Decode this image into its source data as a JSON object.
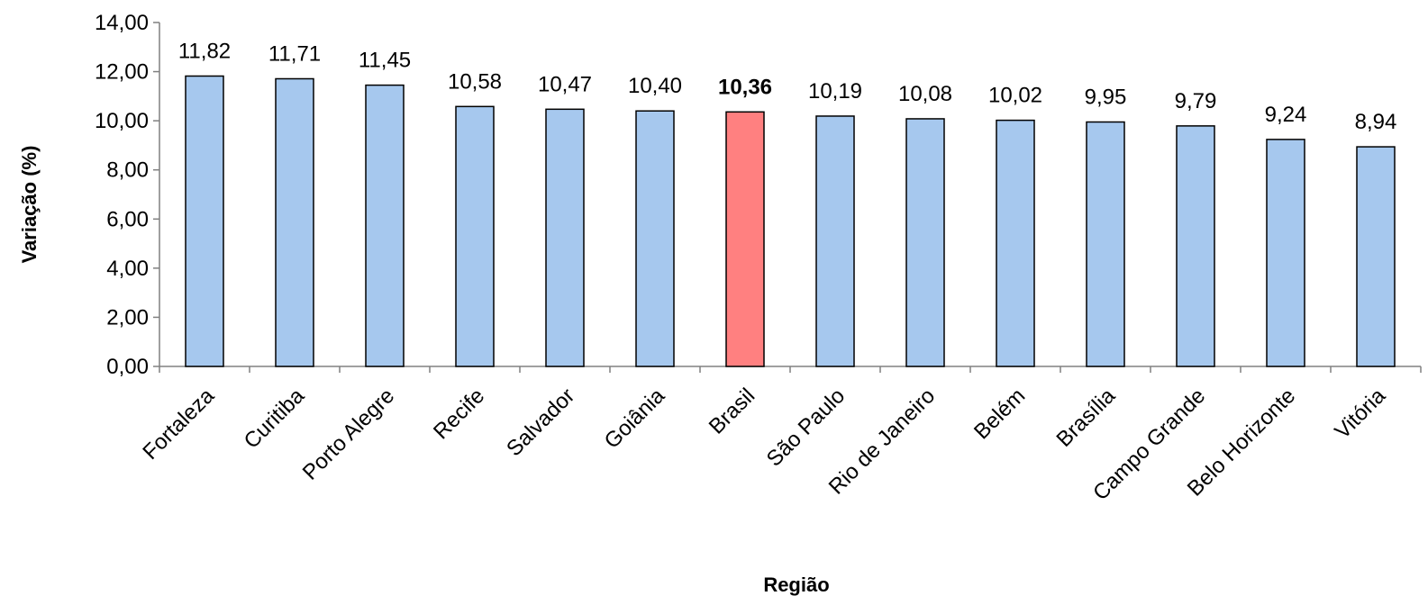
{
  "chart_data": {
    "type": "bar",
    "categories": [
      "Fortaleza",
      "Curitiba",
      "Porto Alegre",
      "Recife",
      "Salvador",
      "Goiânia",
      "Brasil",
      "São Paulo",
      "Rio de Janeiro",
      "Belém",
      "Brasília",
      "Campo Grande",
      "Belo Horizonte",
      "Vitória"
    ],
    "values": [
      11.82,
      11.71,
      11.45,
      10.58,
      10.47,
      10.4,
      10.36,
      10.19,
      10.08,
      10.02,
      9.95,
      9.79,
      9.24,
      8.94
    ],
    "value_labels": [
      "11,82",
      "11,71",
      "11,45",
      "10,58",
      "10,47",
      "10,40",
      "10,36",
      "10,19",
      "10,08",
      "10,02",
      "9,95",
      "9,79",
      "9,24",
      "8,94"
    ],
    "highlight_category": "Brasil",
    "y_ticks": [
      "0,00",
      "2,00",
      "4,00",
      "6,00",
      "8,00",
      "10,00",
      "12,00",
      "14,00"
    ],
    "xlabel": "Região",
    "ylabel": "Variação (%)",
    "ylim": [
      0,
      14
    ],
    "grid": false,
    "colors": {
      "bar": "#a6c8ee",
      "highlight": "#ff8080",
      "outline": "#000000",
      "axis": "#808080"
    }
  }
}
